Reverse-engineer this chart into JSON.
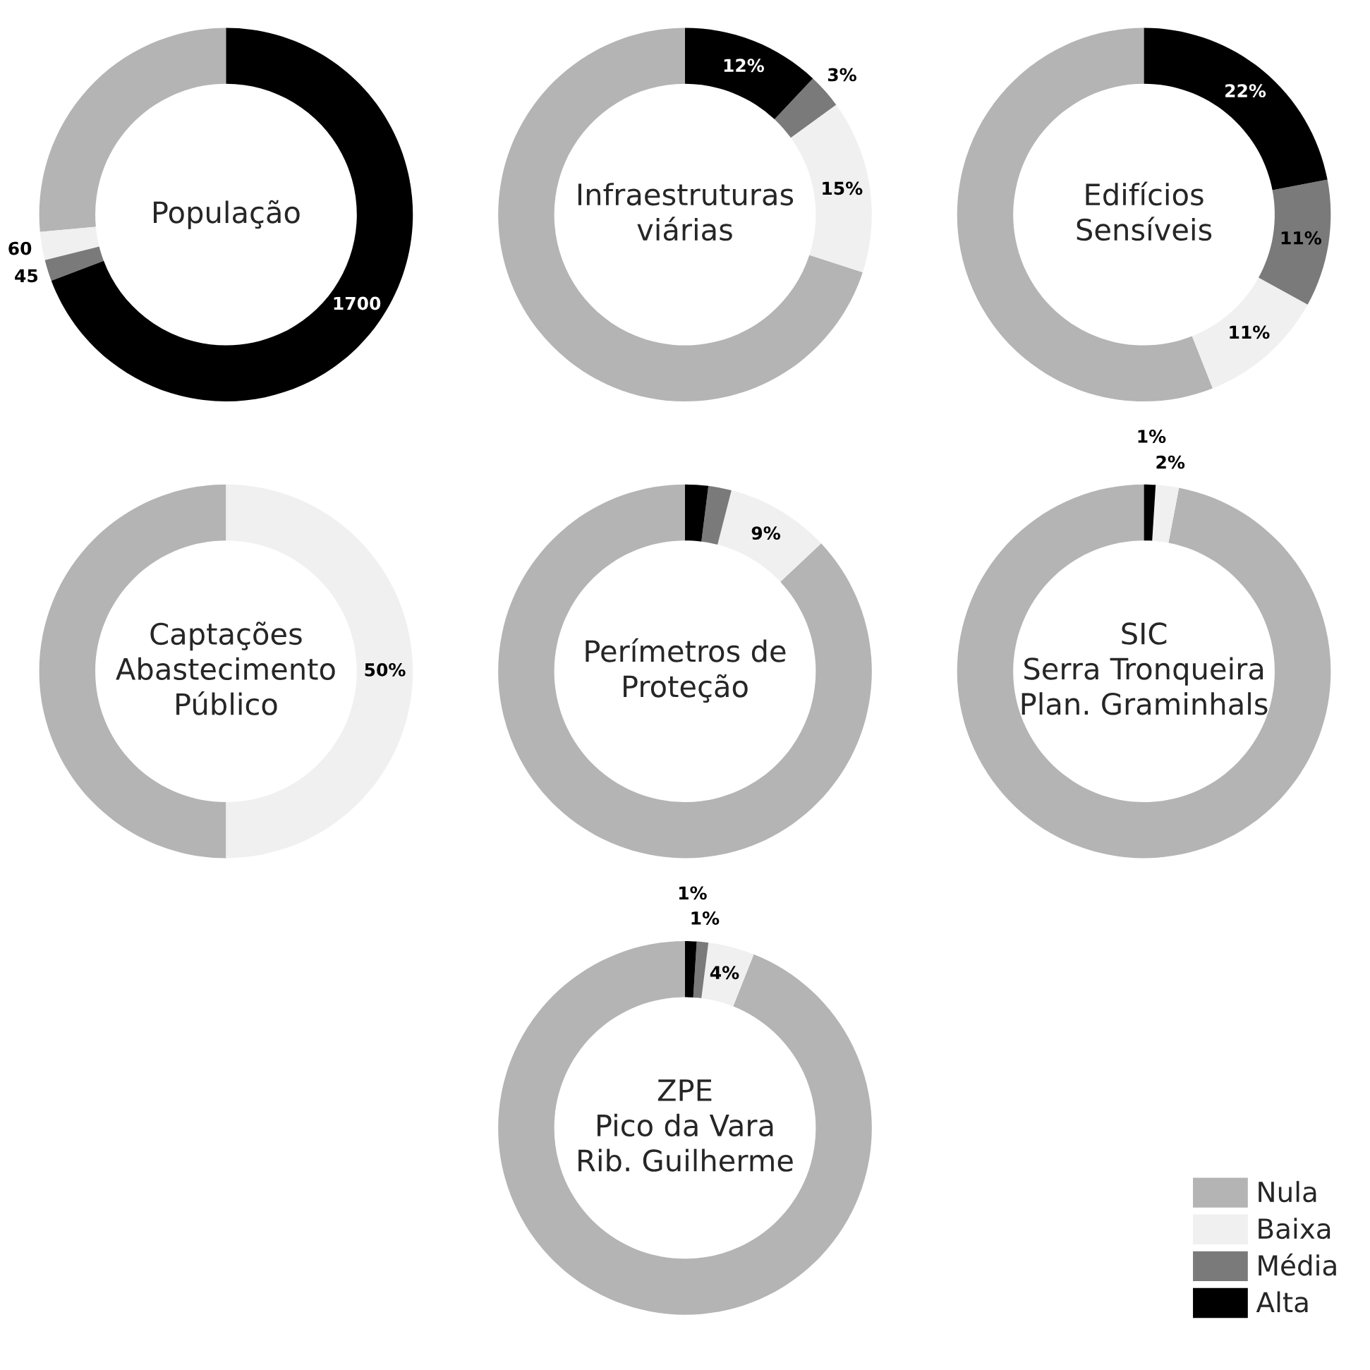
{
  "chart_data": [
    {
      "type": "donut",
      "title": "População",
      "categories": [
        "Nula",
        "Baixa",
        "Média",
        "Alta"
      ],
      "colors": [
        "#b4b4b4",
        "#f0f0f0",
        "#7a7a7a",
        "#000000"
      ],
      "values": [
        650,
        60,
        45,
        1700
      ],
      "value_labels": [
        null,
        "60",
        "45",
        "1700"
      ],
      "legend": "bottom right"
    },
    {
      "type": "donut",
      "title": "Infraestruturas\nviárias",
      "categories": [
        null,
        null,
        null,
        null
      ],
      "colors": [
        "#b4b4b4",
        "#f0f0f0",
        "#7a7a7a",
        "#000000"
      ],
      "values": [
        70,
        15,
        3,
        12
      ],
      "value_labels": [
        null,
        "15%",
        "3%",
        "12%"
      ]
    },
    {
      "type": "donut",
      "title": "Edifícios\nSensíveis",
      "categories": [
        null,
        null,
        null,
        null
      ],
      "colors": [
        "#b4b4b4",
        "#f0f0f0",
        "#7a7a7a",
        "#000000"
      ],
      "values": [
        56,
        11,
        11,
        22
      ],
      "value_labels": [
        null,
        "11%",
        "11%",
        "22%"
      ]
    },
    {
      "type": "donut",
      "title": "Captações\nAbastecimento\nPúblico",
      "categories": [
        null,
        null,
        null,
        null
      ],
      "colors": [
        "#b4b4b4",
        "#f0f0f0",
        "#7a7a7a",
        "#000000"
      ],
      "values": [
        50,
        50,
        0,
        0
      ],
      "value_labels": [
        null,
        "50%",
        null,
        null
      ]
    },
    {
      "type": "donut",
      "title": "Perímetros de\nProteção",
      "categories": [
        null,
        null,
        null,
        null
      ],
      "colors": [
        "#b4b4b4",
        "#f0f0f0",
        "#7a7a7a",
        "#000000"
      ],
      "values": [
        87,
        9,
        2,
        2
      ],
      "value_labels": [
        null,
        "9%",
        null,
        null
      ]
    },
    {
      "type": "donut",
      "title": "SIC\nSerra Tronqueira\nPlan. Graminhals",
      "categories": [
        null,
        null,
        null,
        null
      ],
      "colors": [
        "#b4b4b4",
        "#f0f0f0",
        "#7a7a7a",
        "#000000"
      ],
      "values": [
        97,
        2,
        0,
        1
      ],
      "value_labels": [
        null,
        "2%",
        null,
        "1%"
      ]
    },
    {
      "type": "donut",
      "title": "ZPE\nPico da Vara\nRib. Guilherme",
      "categories": [
        null,
        null,
        null,
        null
      ],
      "colors": [
        "#b4b4b4",
        "#f0f0f0",
        "#7a7a7a",
        "#000000"
      ],
      "values": [
        94,
        4,
        1,
        1
      ],
      "value_labels": [
        null,
        "4%",
        "1%",
        "1%"
      ]
    }
  ]
}
